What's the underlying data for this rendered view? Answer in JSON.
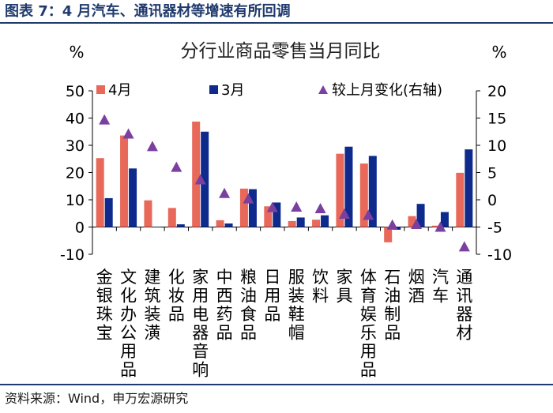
{
  "header": {
    "title": "图表 7：4 月汽车、通讯器材等增速有所回调"
  },
  "footer": {
    "source": "资料来源：Wind，申万宏源研究"
  },
  "colors": {
    "apr": "#e8685a",
    "mar": "#0d2a8c",
    "change": "#7b3fa0",
    "axis": "#000000",
    "title_bar": "#1f3a6e"
  },
  "chart_data": {
    "type": "bar",
    "title": "分行业商品零售当月同比",
    "left_unit": "%",
    "right_unit": "%",
    "categories": [
      "金银珠宝",
      "文化办公用品",
      "建筑装潢",
      "化妆品",
      "家用电器音响",
      "中西药品",
      "粮油食品",
      "日用品",
      "服装鞋帽",
      "饮料",
      "家具",
      "体育娱乐用品",
      "石油制品",
      "烟酒",
      "汽车",
      "通讯器材"
    ],
    "series": [
      {
        "name": "4月",
        "axis": "left",
        "values": [
          25.3,
          33.6,
          9.8,
          7.0,
          38.7,
          2.5,
          14.1,
          7.6,
          2.2,
          2.7,
          26.9,
          23.3,
          -5.6,
          4.0,
          0.5,
          19.9
        ]
      },
      {
        "name": "3月",
        "axis": "left",
        "values": [
          10.6,
          21.5,
          0.0,
          1.0,
          35.0,
          1.3,
          13.9,
          9.0,
          3.5,
          4.3,
          29.5,
          26.1,
          -1.0,
          8.5,
          5.5,
          28.5
        ]
      },
      {
        "name": "较上月变化(右轴)",
        "axis": "right",
        "type": "scatter",
        "values": [
          14.7,
          12.1,
          9.8,
          6.0,
          3.7,
          1.2,
          0.2,
          -1.4,
          -1.3,
          -1.6,
          -2.6,
          -2.8,
          -4.6,
          -4.5,
          -5.0,
          -8.6
        ]
      }
    ],
    "ylim": [
      -10,
      50
    ],
    "yticks": [
      -10,
      0,
      10,
      20,
      30,
      40,
      50
    ],
    "y2lim": [
      -10,
      20
    ],
    "y2ticks": [
      -10,
      -5,
      0,
      5,
      10,
      15,
      20
    ],
    "legend_position": "top"
  }
}
